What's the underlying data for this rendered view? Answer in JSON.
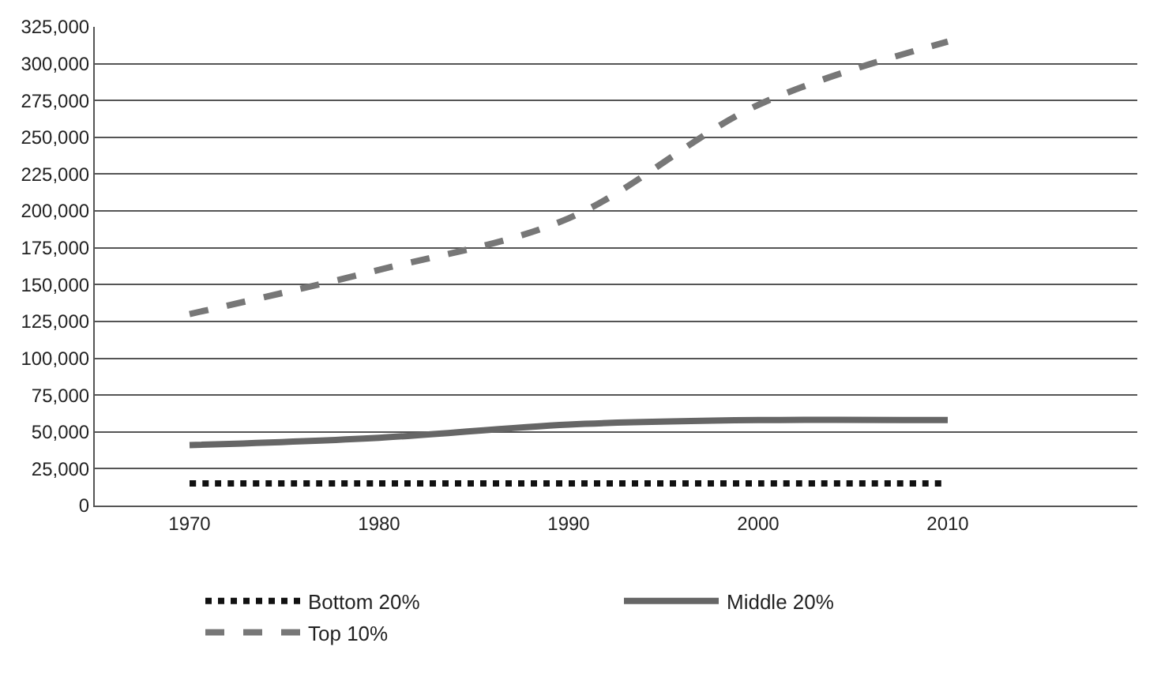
{
  "chart_data": {
    "type": "line",
    "x": [
      1970,
      1980,
      1990,
      2000,
      2010
    ],
    "xlim": [
      1965,
      2020
    ],
    "xticks": [
      1970,
      1980,
      1990,
      2000,
      2010
    ],
    "ylim": [
      0,
      325000
    ],
    "yticks": [
      {
        "value": 0,
        "label": "0"
      },
      {
        "value": 25000,
        "label": "25,000"
      },
      {
        "value": 50000,
        "label": "50,000"
      },
      {
        "value": 75000,
        "label": "75,000"
      },
      {
        "value": 100000,
        "label": "100,000"
      },
      {
        "value": 125000,
        "label": "125,000"
      },
      {
        "value": 150000,
        "label": "150,000"
      },
      {
        "value": 175000,
        "label": "175,000"
      },
      {
        "value": 200000,
        "label": "200,000"
      },
      {
        "value": 225000,
        "label": "225,000"
      },
      {
        "value": 250000,
        "label": "250,000"
      },
      {
        "value": 275000,
        "label": "275,000"
      },
      {
        "value": 300000,
        "label": "300,000"
      },
      {
        "value": 325000,
        "label": "325,000"
      }
    ],
    "grid": "y",
    "legend": "bottom",
    "marker": "none",
    "series": [
      {
        "name": "Bottom 20%",
        "color": "#111111",
        "line_style": "dotted",
        "values": [
          15000,
          15000,
          15000,
          15000,
          15000
        ]
      },
      {
        "name": "Middle 20%",
        "color": "#666666",
        "line_style": "solid",
        "values": [
          41000,
          46000,
          55000,
          58000,
          58000
        ]
      },
      {
        "name": "Top 10%",
        "color": "#777777",
        "line_style": "dashed",
        "values": [
          130000,
          160000,
          195000,
          272000,
          315000
        ]
      }
    ]
  }
}
